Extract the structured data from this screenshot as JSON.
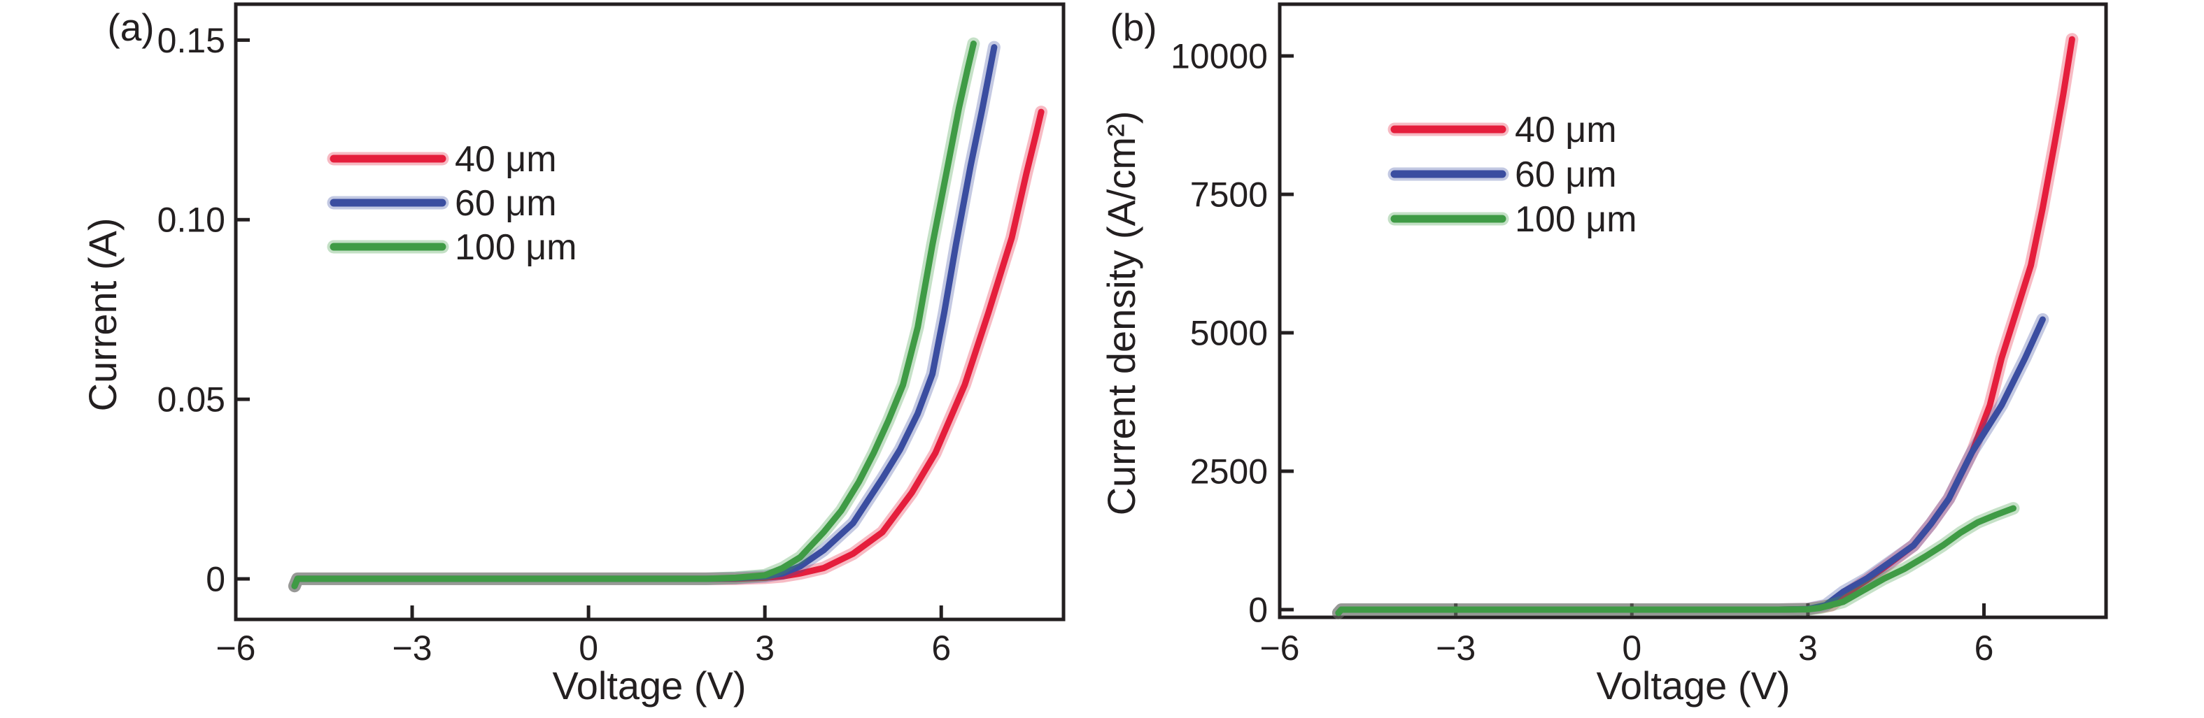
{
  "figure": {
    "background": "#ffffff",
    "axis_color": "#231f20",
    "accent_colors": {
      "red": "#e51e3c",
      "blue": "#3a4da0",
      "green": "#3f9b45"
    }
  },
  "chart_data": [
    {
      "type": "line",
      "panel_label": "(a)",
      "title": "",
      "xlabel": "Voltage (V)",
      "ylabel": "Current (A)",
      "xlim": [
        -6,
        8.08
      ],
      "ylim": [
        -0.0113,
        0.16
      ],
      "xticks": [
        -6,
        -3,
        0,
        3,
        6
      ],
      "xtick_labels": [
        "−6",
        "−3",
        "0",
        "3",
        "6"
      ],
      "yticks": [
        0,
        0.05,
        0.1,
        0.15
      ],
      "ytick_labels": [
        "0",
        "0.05",
        "0.10",
        "0.15"
      ],
      "grid": false,
      "legend_position": "upper-left-inside",
      "series": [
        {
          "name": "40 μm",
          "color": "#e51e3c",
          "x": [
            -5,
            -4.95,
            -4.5,
            -4,
            -3,
            -2,
            -1,
            0,
            1,
            2,
            2.5,
            3,
            3.3,
            3.6,
            4,
            4.5,
            5,
            5.5,
            5.9,
            6.4,
            6.8,
            7.2,
            7.45,
            7.6,
            7.7
          ],
          "y": [
            -0.002,
            0,
            0,
            0,
            0,
            0,
            0,
            0,
            0,
            0,
            0,
            0.0003,
            0.0007,
            0.0015,
            0.003,
            0.007,
            0.013,
            0.024,
            0.035,
            0.054,
            0.074,
            0.095,
            0.113,
            0.123,
            0.13
          ]
        },
        {
          "name": "60 μm",
          "color": "#3a4da0",
          "x": [
            -5,
            -4.95,
            -4.5,
            -4,
            -3,
            -2,
            -1,
            0,
            1,
            2,
            2.5,
            3,
            3.3,
            3.6,
            4,
            4.5,
            5,
            5.3,
            5.6,
            5.85,
            6.05,
            6.25,
            6.5,
            6.7,
            6.9
          ],
          "y": [
            -0.002,
            0,
            0,
            0,
            0,
            0,
            0,
            0,
            0,
            0,
            0.0002,
            0.0007,
            0.0015,
            0.0035,
            0.008,
            0.0155,
            0.028,
            0.036,
            0.046,
            0.057,
            0.074,
            0.093,
            0.115,
            0.131,
            0.148
          ]
        },
        {
          "name": "100 μm",
          "color": "#3f9b45",
          "x": [
            -5,
            -4.95,
            -4.5,
            -4,
            -3,
            -2,
            -1,
            0,
            1,
            2,
            2.5,
            3,
            3.3,
            3.6,
            4,
            4.3,
            4.6,
            4.85,
            5.1,
            5.35,
            5.6,
            5.85,
            6.1,
            6.3,
            6.45,
            6.55
          ],
          "y": [
            -0.002,
            0,
            0,
            0,
            0,
            0,
            0,
            0,
            0,
            0,
            0.0003,
            0.001,
            0.003,
            0.006,
            0.013,
            0.019,
            0.027,
            0.035,
            0.044,
            0.054,
            0.07,
            0.093,
            0.114,
            0.131,
            0.142,
            0.149
          ]
        }
      ]
    },
    {
      "type": "line",
      "panel_label": "(b)",
      "title": "",
      "xlabel": "Voltage (V)",
      "ylabel": "Current density (A/cm²)",
      "xlim": [
        -6,
        8.08
      ],
      "ylim": [
        -139,
        10934
      ],
      "xticks": [
        -6,
        -3,
        0,
        3,
        6
      ],
      "xtick_labels": [
        "−6",
        "−3",
        "0",
        "3",
        "6"
      ],
      "yticks": [
        0,
        2500,
        5000,
        7500,
        10000
      ],
      "ytick_labels": [
        "0",
        "2500",
        "5000",
        "7500",
        "10000"
      ],
      "grid": false,
      "legend_position": "upper-left-inside",
      "series": [
        {
          "name": "40 μm",
          "color": "#e51e3c",
          "x": [
            -5,
            -4.95,
            -4.5,
            -4,
            -3,
            -2,
            -1,
            0,
            1,
            2,
            2.5,
            3,
            3.4,
            3.7,
            4,
            4.3,
            4.8,
            5.1,
            5.4,
            5.8,
            6.1,
            6.3,
            6.55,
            6.8,
            7.0,
            7.2,
            7.35,
            7.5
          ],
          "y": [
            -60,
            0,
            0,
            0,
            0,
            0,
            0,
            0,
            0,
            0,
            0,
            10,
            80,
            320,
            530,
            760,
            1160,
            1550,
            2000,
            2850,
            3690,
            4540,
            5380,
            6220,
            7250,
            8400,
            9300,
            10300
          ]
        },
        {
          "name": "60 μm",
          "color": "#3a4da0",
          "x": [
            -5,
            -4.95,
            -4.5,
            -4,
            -3,
            -2,
            -1,
            0,
            1,
            2,
            2.5,
            3,
            3.3,
            3.6,
            4,
            4.4,
            4.8,
            5.1,
            5.4,
            5.8,
            6.3,
            6.7,
            7.0
          ],
          "y": [
            -60,
            0,
            0,
            0,
            0,
            0,
            0,
            0,
            0,
            0,
            0,
            10,
            80,
            320,
            560,
            860,
            1160,
            1550,
            2000,
            2850,
            3690,
            4540,
            5240
          ]
        },
        {
          "name": "100 μm",
          "color": "#3f9b45",
          "x": [
            -5,
            -4.95,
            -4.5,
            -4,
            -3,
            -2,
            -1,
            0,
            1,
            2,
            2.5,
            3,
            3.2,
            3.6,
            3.9,
            4.3,
            4.65,
            5.0,
            5.3,
            5.6,
            5.9,
            6.2,
            6.5
          ],
          "y": [
            -60,
            0,
            0,
            0,
            0,
            0,
            0,
            0,
            0,
            0,
            0,
            5,
            30,
            140,
            320,
            560,
            740,
            960,
            1160,
            1390,
            1580,
            1710,
            1830
          ]
        }
      ]
    }
  ]
}
